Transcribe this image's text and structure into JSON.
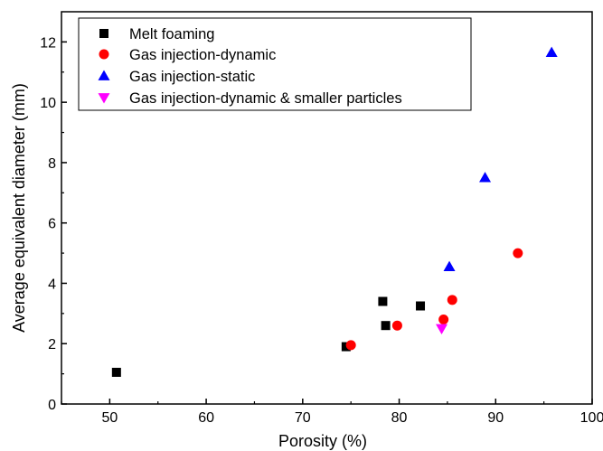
{
  "chart_data": {
    "type": "scatter",
    "xlabel": "Porosity (%)",
    "ylabel": "Average equivalent diameter (mm)",
    "xlim": [
      45,
      100
    ],
    "ylim": [
      0,
      13
    ],
    "xticks": [
      50,
      60,
      70,
      80,
      90,
      100
    ],
    "yticks": [
      0,
      2,
      4,
      6,
      8,
      10,
      12
    ],
    "grid": false,
    "legend_position": "top-left",
    "series": [
      {
        "name": "Melt foaming",
        "marker": "square",
        "color": "#000000",
        "points": [
          {
            "x": 50.7,
            "y": 1.05
          },
          {
            "x": 74.5,
            "y": 1.9
          },
          {
            "x": 78.3,
            "y": 3.4
          },
          {
            "x": 78.6,
            "y": 2.6
          },
          {
            "x": 82.2,
            "y": 3.25
          }
        ]
      },
      {
        "name": "Gas injection-dynamic",
        "marker": "circle",
        "color": "#ff0000",
        "points": [
          {
            "x": 75.0,
            "y": 1.95
          },
          {
            "x": 79.8,
            "y": 2.6
          },
          {
            "x": 84.6,
            "y": 2.8
          },
          {
            "x": 85.5,
            "y": 3.45
          },
          {
            "x": 92.3,
            "y": 5.0
          }
        ]
      },
      {
        "name": "Gas injection-static",
        "marker": "triangle-up",
        "color": "#0000ff",
        "points": [
          {
            "x": 85.2,
            "y": 4.55
          },
          {
            "x": 88.9,
            "y": 7.5
          },
          {
            "x": 95.8,
            "y": 11.65
          }
        ]
      },
      {
        "name": "Gas injection-dynamic & smaller particles",
        "marker": "triangle-down",
        "color": "#ff00ff",
        "points": [
          {
            "x": 84.4,
            "y": 2.5
          }
        ]
      }
    ]
  }
}
